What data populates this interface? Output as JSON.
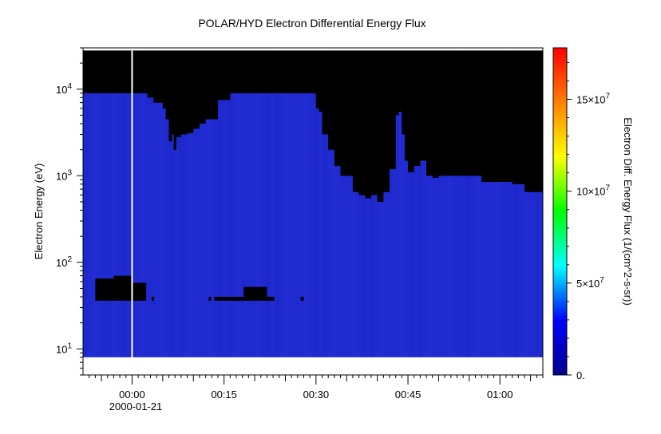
{
  "chart_data": {
    "type": "heatmap",
    "title": "POLAR/HYD  Electron Differential Energy Flux",
    "ylabel": "Electron Energy (eV)",
    "colorbar_label": "Electron Diff. Energy Flux (1/(cm^2-s-sr))",
    "xlim": [
      "23:52",
      "01:07"
    ],
    "ylim": [
      5,
      30000
    ],
    "y_scale": "log",
    "y_ticks": [
      {
        "base": "10",
        "exp": "1",
        "value": 10
      },
      {
        "base": "10",
        "exp": "2",
        "value": 100
      },
      {
        "base": "10",
        "exp": "3",
        "value": 1000
      },
      {
        "base": "10",
        "exp": "4",
        "value": 10000
      }
    ],
    "x_ticks": [
      {
        "label": "00:00",
        "minutes": 0
      },
      {
        "label": "00:15",
        "minutes": 15
      },
      {
        "label": "00:30",
        "minutes": 30
      },
      {
        "label": "00:45",
        "minutes": 45
      },
      {
        "label": "01:00",
        "minutes": 60
      }
    ],
    "x_date_label": "2000-01-21",
    "colorbar": {
      "range": [
        0,
        178000000
      ],
      "ticks": [
        {
          "label": "0.",
          "value": 0
        },
        {
          "label": "5×10",
          "exp": "7",
          "value": 50000000
        },
        {
          "label": "10×10",
          "exp": "7",
          "value": 100000000
        },
        {
          "label": "15×10",
          "exp": "7",
          "value": 150000000
        }
      ],
      "colormap": [
        "#00008b",
        "#0000ff",
        "#00ffff",
        "#00ff00",
        "#ffff00",
        "#ff8000",
        "#ff0000"
      ]
    },
    "data_range": {
      "min_energy": 8,
      "max_energy": 28000
    },
    "marker_line_time": "00:00",
    "upper_cutoff": {
      "minutes": [
        -8,
        2.5,
        2.5,
        3.5,
        5,
        5.5,
        6,
        6.5,
        6.8,
        7.2,
        8,
        9,
        10,
        11,
        12,
        14,
        16,
        18,
        20,
        22,
        25,
        28,
        30,
        30.5,
        31,
        32,
        33,
        34,
        35,
        36,
        37,
        38,
        39,
        40,
        41,
        42,
        43,
        43.5,
        44,
        44.5,
        45,
        46,
        47,
        48,
        49,
        50,
        52,
        54,
        56,
        57,
        58,
        59,
        60,
        62,
        63,
        64,
        65,
        66,
        67
      ],
      "energy": [
        9000,
        9000,
        8000,
        7000,
        6000,
        4500,
        2500,
        3000,
        2000,
        2800,
        3000,
        3100,
        3500,
        4000,
        4500,
        7500,
        9000,
        9000,
        9000,
        9000,
        9000,
        9000,
        6000,
        5500,
        3000,
        2000,
        1300,
        1000,
        1000,
        650,
        600,
        550,
        600,
        500,
        650,
        1200,
        5000,
        5500,
        3000,
        1500,
        1100,
        1300,
        1500,
        1000,
        950,
        1000,
        1000,
        1000,
        1000,
        850,
        850,
        850,
        850,
        800,
        800,
        650,
        650,
        650,
        650
      ]
    },
    "low_flux_patches": [
      {
        "t0": -6,
        "t1": -3,
        "e_low": 36,
        "e_high": 65
      },
      {
        "t0": -3,
        "t1": 0,
        "e_low": 36,
        "e_high": 70
      },
      {
        "t0": 0,
        "t1": 2.3,
        "e_low": 36,
        "e_high": 58
      },
      {
        "t0": 3.2,
        "t1": 3.6,
        "e_low": 36,
        "e_high": 40
      },
      {
        "t0": 12.5,
        "t1": 12.9,
        "e_low": 36,
        "e_high": 40
      },
      {
        "t0": 13.4,
        "t1": 18.2,
        "e_low": 36,
        "e_high": 40
      },
      {
        "t0": 18.2,
        "t1": 22,
        "e_low": 36,
        "e_high": 52
      },
      {
        "t0": 22,
        "t1": 23.2,
        "e_low": 36,
        "e_high": 40
      },
      {
        "t0": 27.5,
        "t1": 28,
        "e_low": 36,
        "e_high": 40
      }
    ]
  }
}
